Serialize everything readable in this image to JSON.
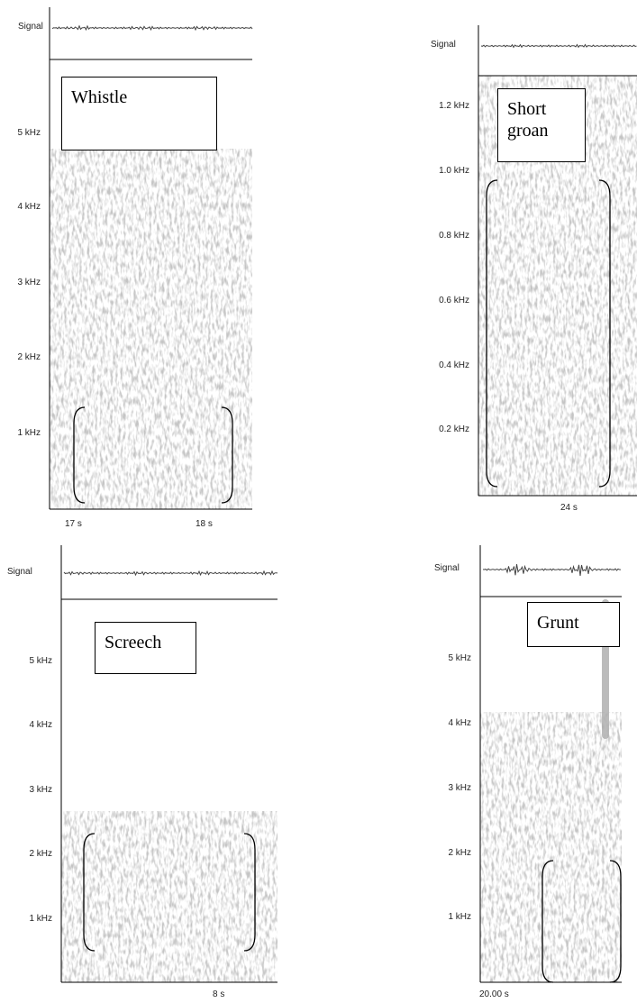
{
  "panels": [
    {
      "label": "Whistle",
      "signal": "Signal",
      "yticks": [
        "5 kHz",
        "4 kHz",
        "3 kHz",
        "2 kHz",
        "1 kHz"
      ],
      "xticks": [
        "17 s",
        "18 s"
      ]
    },
    {
      "label": "Short groan",
      "signal": "Signal",
      "yticks": [
        "1.2 kHz",
        "1.0 kHz",
        "0.8 kHz",
        "0.6 kHz",
        "0.4 kHz",
        "0.2 kHz"
      ],
      "xticks": [
        "24  s"
      ]
    },
    {
      "label": "Screech",
      "signal": "Signal",
      "yticks": [
        "5 kHz",
        "4 kHz",
        "3 kHz",
        "2 kHz",
        "1 kHz"
      ],
      "xticks": [
        "8  s"
      ]
    },
    {
      "label": "Grunt",
      "signal": "Signal",
      "yticks": [
        "5 kHz",
        "4 kHz",
        "3 kHz",
        "2 kHz",
        "1 kHz"
      ],
      "xticks": [
        "20.00 s"
      ]
    }
  ]
}
